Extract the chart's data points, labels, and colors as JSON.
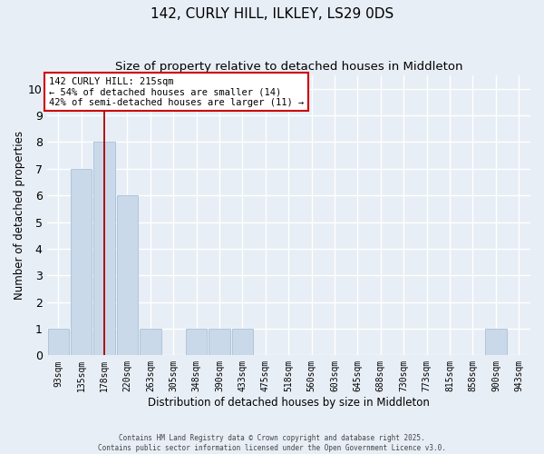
{
  "title": "142, CURLY HILL, ILKLEY, LS29 0DS",
  "subtitle": "Size of property relative to detached houses in Middleton",
  "xlabel": "Distribution of detached houses by size in Middleton",
  "ylabel": "Number of detached properties",
  "categories": [
    "93sqm",
    "135sqm",
    "178sqm",
    "220sqm",
    "263sqm",
    "305sqm",
    "348sqm",
    "390sqm",
    "433sqm",
    "475sqm",
    "518sqm",
    "560sqm",
    "603sqm",
    "645sqm",
    "688sqm",
    "730sqm",
    "773sqm",
    "815sqm",
    "858sqm",
    "900sqm",
    "943sqm"
  ],
  "values": [
    1,
    7,
    8,
    6,
    1,
    0,
    1,
    1,
    1,
    0,
    0,
    0,
    0,
    0,
    0,
    0,
    0,
    0,
    0,
    1,
    0
  ],
  "bar_color": "#c9d9ea",
  "bar_edge_color": "#a8c0d8",
  "highlight_index": 2,
  "highlight_line_color": "#aa0000",
  "annotation_line1": "142 CURLY HILL: 215sqm",
  "annotation_line2": "← 54% of detached houses are smaller (14)",
  "annotation_line3": "42% of semi-detached houses are larger (11) →",
  "annotation_box_color": "#ffffff",
  "annotation_box_edge": "#cc0000",
  "ylim": [
    0,
    10.5
  ],
  "yticks": [
    0,
    1,
    2,
    3,
    4,
    5,
    6,
    7,
    8,
    9,
    10
  ],
  "background_color": "#e8eef5",
  "grid_color": "#ffffff",
  "footer1": "Contains HM Land Registry data © Crown copyright and database right 2025.",
  "footer2": "Contains public sector information licensed under the Open Government Licence v3.0."
}
